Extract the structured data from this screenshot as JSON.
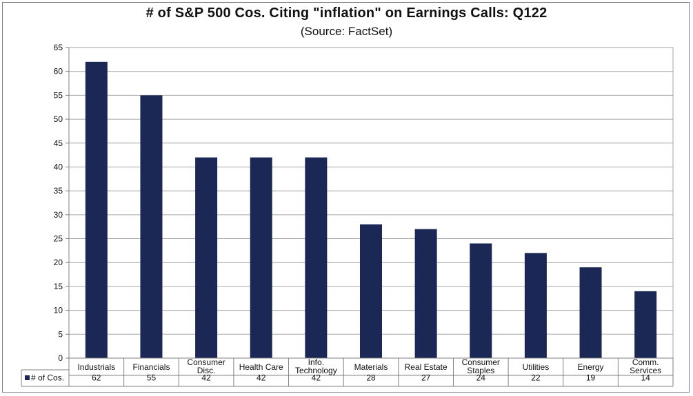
{
  "chart_data": {
    "type": "bar",
    "title": "# of S&P 500 Cos. Citing \"inflation\" on Earnings Calls: Q122",
    "subtitle": "(Source: FactSet)",
    "xlabel": "",
    "ylabel": "",
    "ylim": [
      0,
      65
    ],
    "ytick_step": 5,
    "grid": true,
    "legend_position": "data-table-left",
    "bar_color": "#1b2754",
    "categories": [
      [
        "Industrials"
      ],
      [
        "Financials"
      ],
      [
        "Consumer",
        "Disc."
      ],
      [
        "Health Care"
      ],
      [
        "Info.",
        "Technology"
      ],
      [
        "Materials"
      ],
      [
        "Real Estate"
      ],
      [
        "Consumer",
        "Staples"
      ],
      [
        "Utilities"
      ],
      [
        "Energy"
      ],
      [
        "Comm.",
        "Services"
      ]
    ],
    "series": [
      {
        "name": "# of Cos.",
        "values": [
          62,
          55,
          42,
          42,
          42,
          28,
          27,
          24,
          22,
          19,
          14
        ]
      }
    ]
  }
}
